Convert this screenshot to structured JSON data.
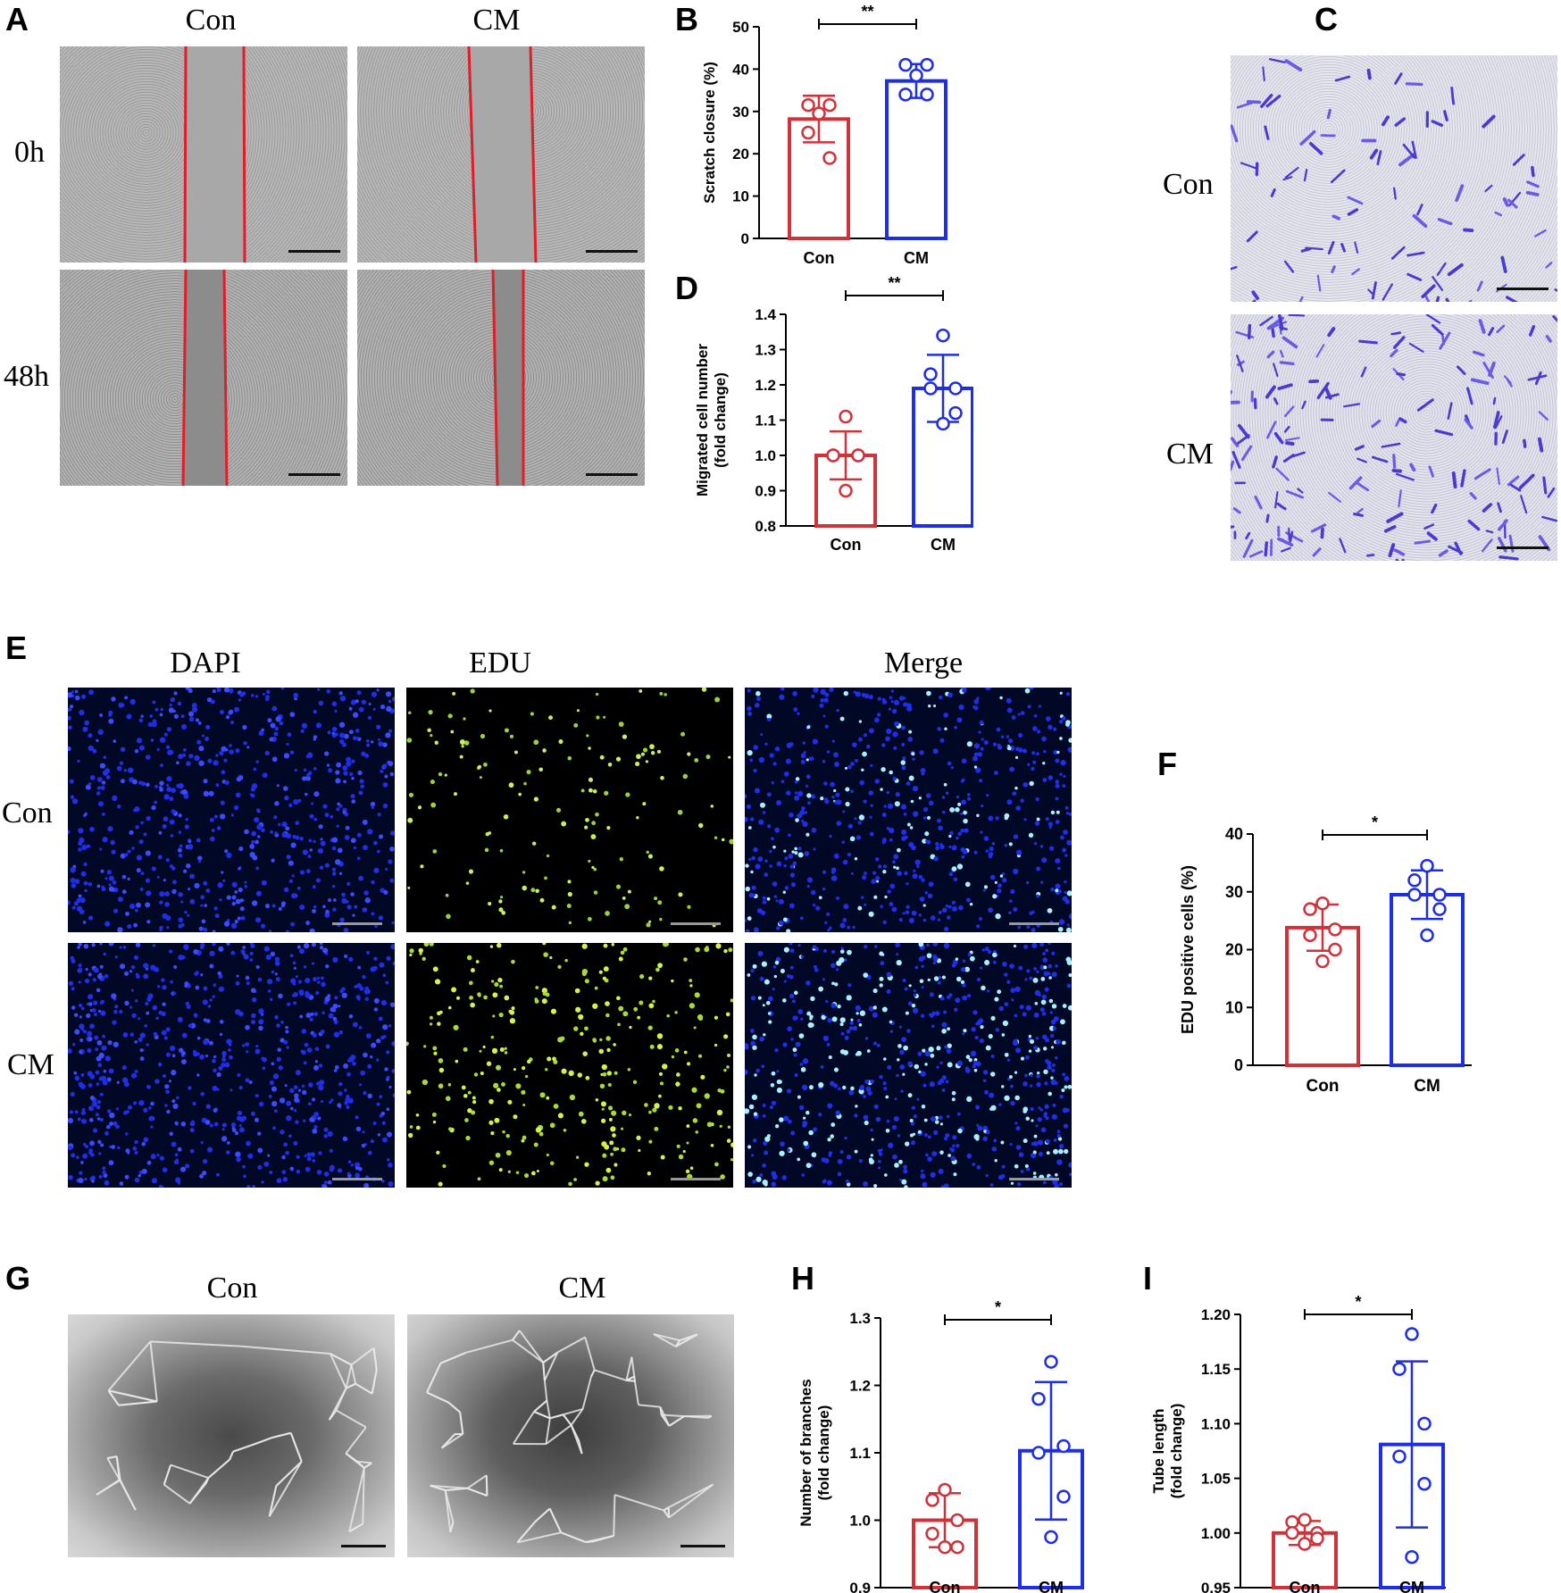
{
  "panels": {
    "A": {
      "letter": "A",
      "col_labels": [
        "Con",
        "CM"
      ],
      "row_labels": [
        "0h",
        "48h"
      ]
    },
    "C": {
      "letter": "C",
      "row_labels": [
        "Con",
        "CM"
      ]
    },
    "E": {
      "letter": "E",
      "col_labels": [
        "DAPI",
        "EDU",
        "Merge"
      ],
      "row_labels": [
        "Con",
        "CM"
      ]
    },
    "G": {
      "letter": "G",
      "col_labels": [
        "Con",
        "CM"
      ]
    }
  },
  "colors": {
    "con": "#d0323a",
    "cm": "#1e2ee6"
  },
  "chart_data": [
    {
      "panel": "B",
      "type": "bar",
      "categories": [
        "Con",
        "CM"
      ],
      "values": [
        28.2,
        37.2
      ],
      "sd": [
        5.5,
        4.0
      ],
      "points": [
        [
          31.5,
          31.5,
          29.5,
          25.0,
          19.0
        ],
        [
          41.0,
          41.0,
          38.5,
          34.0,
          34.0
        ]
      ],
      "ylabel": "Scratch closure (%)",
      "ylim": [
        0,
        50
      ],
      "yticks": [
        "0",
        "10",
        "20",
        "30",
        "40",
        "50"
      ],
      "significance": "**"
    },
    {
      "panel": "D",
      "type": "bar",
      "categories": [
        "Con",
        "CM"
      ],
      "values": [
        1.0,
        1.19
      ],
      "sd": [
        0.068,
        0.095
      ],
      "points": [
        [
          1.11,
          1.0,
          1.0,
          1.0,
          1.0,
          0.9
        ],
        [
          1.34,
          1.23,
          1.19,
          1.19,
          1.12,
          1.09
        ]
      ],
      "ylabel": "Migrated cell number (fold change)",
      "ylim": [
        0.8,
        1.4
      ],
      "yticks": [
        "0.8",
        "0.9",
        "1.0",
        "1.1",
        "1.2",
        "1.3",
        "1.4"
      ],
      "significance": "**"
    },
    {
      "panel": "F",
      "type": "bar",
      "categories": [
        "Con",
        "CM"
      ],
      "values": [
        23.8,
        29.5
      ],
      "sd": [
        4.0,
        4.2
      ],
      "points": [
        [
          28.0,
          27.0,
          23.5,
          22.5,
          20.0,
          18.0
        ],
        [
          34.5,
          32.0,
          29.5,
          29.5,
          27.0,
          22.5
        ]
      ],
      "ylabel": "EDU positive cells (%)",
      "ylim": [
        0,
        40
      ],
      "yticks": [
        "0",
        "10",
        "20",
        "30",
        "40"
      ],
      "significance": "*"
    },
    {
      "panel": "H",
      "type": "bar",
      "categories": [
        "Con",
        "CM"
      ],
      "values": [
        1.0,
        1.103
      ],
      "sd": [
        0.04,
        0.102
      ],
      "points": [
        [
          1.045,
          1.03,
          1.0,
          0.98,
          0.96,
          0.96
        ],
        [
          1.235,
          1.18,
          1.11,
          1.1,
          1.035,
          0.975
        ]
      ],
      "ylabel": "Number of branches (fold change)",
      "ylim": [
        0.9,
        1.3
      ],
      "yticks": [
        "0.9",
        "1.0",
        "1.1",
        "1.2",
        "1.3"
      ],
      "significance": "*"
    },
    {
      "panel": "I",
      "type": "bar",
      "categories": [
        "Con",
        "CM"
      ],
      "values": [
        1.0,
        1.081
      ],
      "sd": [
        0.011,
        0.076
      ],
      "points": [
        [
          1.012,
          1.01,
          1.0,
          1.0,
          0.995,
          0.99
        ],
        [
          1.182,
          1.15,
          1.1,
          1.07,
          1.045,
          0.978
        ]
      ],
      "ylabel": "Tube length (fold change)",
      "ylim": [
        0.95,
        1.2
      ],
      "yticks": [
        "0.95",
        "1.00",
        "1.05",
        "1.10",
        "1.15",
        "1.20"
      ],
      "significance": "*"
    }
  ]
}
